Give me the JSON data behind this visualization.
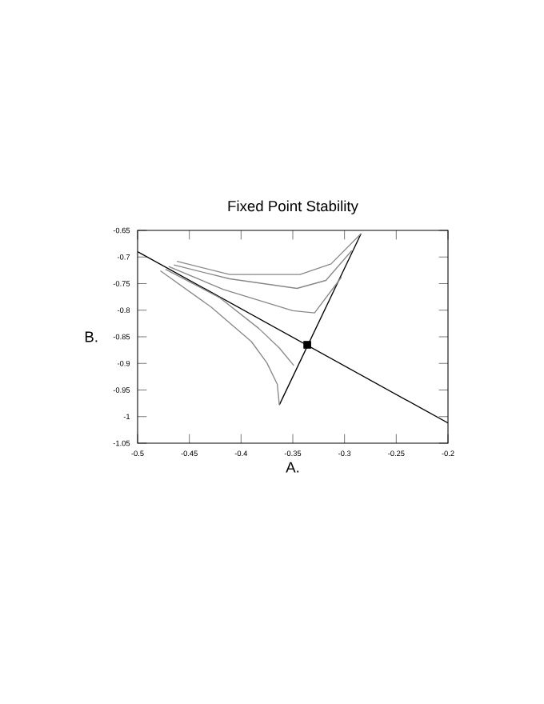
{
  "chart_data": {
    "type": "line",
    "title": "Fixed Point Stability",
    "xlabel": "A.",
    "ylabel": "B.",
    "xlim": [
      -0.5,
      -0.2
    ],
    "ylim": [
      -1.05,
      -0.65
    ],
    "xticks": [
      -0.5,
      -0.45,
      -0.4,
      -0.35,
      -0.3,
      -0.25,
      -0.2
    ],
    "yticks": [
      -1.05,
      -1,
      -0.95,
      -0.9,
      -0.85,
      -0.8,
      -0.75,
      -0.7,
      -0.65
    ],
    "grid": false,
    "marker": "none",
    "line_style": "solid",
    "series": [
      {
        "color": "#000000",
        "x": [
          -0.5,
          -0.2
        ],
        "values": [
          -0.69,
          -1.012
        ]
      },
      {
        "color": "#000000",
        "x": [
          -0.363,
          -0.284
        ],
        "values": [
          -0.978,
          -0.656
        ]
      },
      {
        "color": "#888888",
        "x": [
          -0.462,
          -0.411,
          -0.343,
          -0.313,
          -0.284
        ],
        "values": [
          -0.708,
          -0.733,
          -0.733,
          -0.713,
          -0.656
        ]
      },
      {
        "color": "#888888",
        "x": [
          -0.465,
          -0.411,
          -0.346,
          -0.318,
          -0.293
        ],
        "values": [
          -0.715,
          -0.741,
          -0.759,
          -0.744,
          -0.688
        ]
      },
      {
        "color": "#888888",
        "x": [
          -0.47,
          -0.417,
          -0.35,
          -0.329,
          -0.303
        ],
        "values": [
          -0.718,
          -0.761,
          -0.801,
          -0.805,
          -0.738
        ]
      },
      {
        "color": "#888888",
        "x": [
          -0.473,
          -0.421,
          -0.383,
          -0.363,
          -0.349
        ],
        "values": [
          -0.723,
          -0.776,
          -0.834,
          -0.871,
          -0.904
        ]
      },
      {
        "color": "#888888",
        "x": [
          -0.478,
          -0.429,
          -0.39,
          -0.375,
          -0.365,
          -0.363
        ],
        "values": [
          -0.726,
          -0.794,
          -0.859,
          -0.899,
          -0.939,
          -0.978
        ]
      },
      {
        "type": "scatter",
        "marker": "square",
        "color": "#000000",
        "x": [
          -0.336
        ],
        "values": [
          -0.865
        ]
      }
    ]
  }
}
